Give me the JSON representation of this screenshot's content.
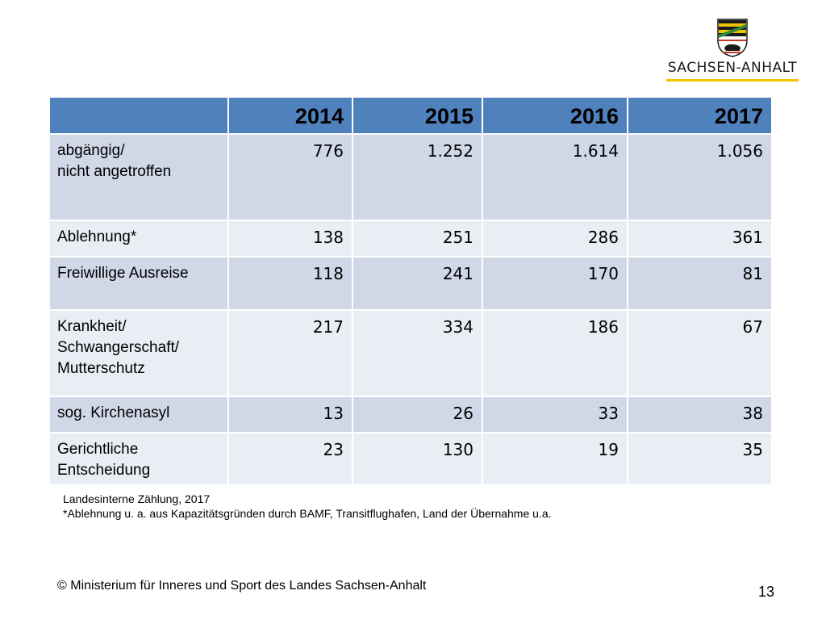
{
  "logo": {
    "wordmark": "SACHSEN-ANHALT",
    "colors": {
      "black": "#1a1a1a",
      "gold": "#f2c300",
      "green": "#2e8b3a",
      "red": "#c0392b"
    }
  },
  "table": {
    "header_fill": "#4f81bd",
    "headers": [
      "",
      "2014",
      "2015",
      "2016",
      "2017"
    ],
    "rows": [
      {
        "label_lines": [
          "abgängig/",
          "nicht angetroffen"
        ],
        "values": [
          "776",
          "1.252",
          "1.614",
          "1.056"
        ]
      },
      {
        "label_lines": [
          "Ablehnung*"
        ],
        "values": [
          "138",
          "251",
          "286",
          "361"
        ]
      },
      {
        "label_lines": [
          "Freiwillige Ausreise"
        ],
        "values": [
          "118",
          "241",
          "170",
          "81"
        ]
      },
      {
        "label_lines": [
          "Krankheit/",
          "Schwangerschaft/",
          "Mutterschutz"
        ],
        "values": [
          "217",
          "334",
          "186",
          "67"
        ]
      },
      {
        "label_lines": [
          "sog. Kirchenasyl"
        ],
        "values": [
          "13",
          "26",
          "33",
          "38"
        ]
      },
      {
        "label_lines": [
          "Gerichtliche",
          "Entscheidung"
        ],
        "values": [
          "23",
          "130",
          "19",
          "35"
        ]
      }
    ]
  },
  "notes": {
    "source": "Landesinterne Zählung, 2017",
    "footnote": "*Ablehnung u. a. aus Kapazitätsgründen durch BAMF, Transitflughafen, Land der Übernahme u.a."
  },
  "footer": {
    "copyright": "© Ministerium für Inneres und Sport des Landes Sachsen-Anhalt",
    "page_number": "13"
  }
}
